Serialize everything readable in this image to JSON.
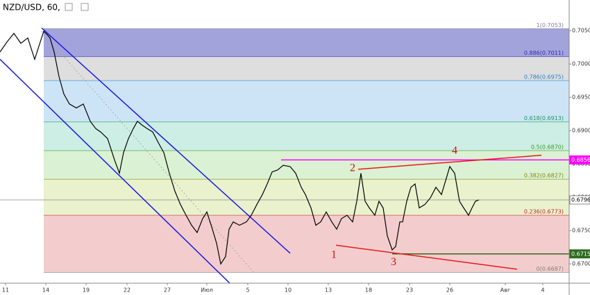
{
  "chart_data": {
    "type": "line",
    "title": "NZD/USD, 60,",
    "xlim": [
      0,
      820
    ],
    "ylim": [
      0.6671,
      0.7096
    ],
    "xticks": [
      {
        "value": 8,
        "label": "11"
      },
      {
        "value": 66,
        "label": "14"
      },
      {
        "value": 124,
        "label": "19"
      },
      {
        "value": 183,
        "label": "22"
      },
      {
        "value": 241,
        "label": "27"
      },
      {
        "value": 298,
        "label": "Июл"
      },
      {
        "value": 357,
        "label": "5"
      },
      {
        "value": 415,
        "label": "10"
      },
      {
        "value": 473,
        "label": "13"
      },
      {
        "value": 531,
        "label": "18"
      },
      {
        "value": 590,
        "label": "23"
      },
      {
        "value": 648,
        "label": "26"
      },
      {
        "value": 728,
        "label": "Авг"
      },
      {
        "value": 782,
        "label": "4"
      }
    ],
    "yticks": [
      {
        "value": 0.67,
        "label": "0.6700"
      },
      {
        "value": 0.675,
        "label": "0.6750"
      },
      {
        "value": 0.68,
        "label": "0.6800"
      },
      {
        "value": 0.685,
        "label": "0.6850"
      },
      {
        "value": 0.69,
        "label": "0.6900"
      },
      {
        "value": 0.695,
        "label": "0.6950"
      },
      {
        "value": 0.7,
        "label": "0.7000"
      },
      {
        "value": 0.705,
        "label": "0.7050"
      }
    ],
    "series": [
      {
        "color": "#000000",
        "x": [
          0,
          10,
          20,
          30,
          40,
          50,
          58,
          63,
          68,
          72,
          78,
          85,
          92,
          100,
          110,
          120,
          130,
          138,
          145,
          155,
          165,
          172,
          178,
          185,
          192,
          198,
          205,
          212,
          220,
          228,
          236,
          244,
          252,
          260,
          268,
          276,
          284,
          292,
          298,
          306,
          312,
          318,
          325,
          330,
          336,
          345,
          355,
          362,
          370,
          378,
          385,
          392,
          400,
          408,
          418,
          426,
          434,
          440,
          448,
          455,
          462,
          470,
          478,
          485,
          492,
          500,
          508,
          514,
          520,
          526,
          532,
          540,
          546,
          552,
          558,
          565,
          570,
          576,
          580,
          586,
          592,
          598,
          604,
          612,
          620,
          628,
          636,
          642,
          648,
          655,
          662,
          668,
          675,
          680,
          685,
          690
        ],
        "values": [
          0.7018,
          0.7033,
          0.7046,
          0.7031,
          0.7039,
          0.7007,
          0.7033,
          0.7049,
          0.7044,
          0.7039,
          0.7018,
          0.6981,
          0.6955,
          0.694,
          0.6934,
          0.694,
          0.6914,
          0.6903,
          0.6898,
          0.6888,
          0.6856,
          0.6836,
          0.6867,
          0.6888,
          0.6903,
          0.6914,
          0.6908,
          0.6903,
          0.6898,
          0.6882,
          0.6867,
          0.6836,
          0.6809,
          0.6789,
          0.6773,
          0.6758,
          0.6747,
          0.6768,
          0.6778,
          0.6752,
          0.6731,
          0.67,
          0.6711,
          0.6752,
          0.6763,
          0.6758,
          0.6763,
          0.6773,
          0.6789,
          0.6804,
          0.682,
          0.6838,
          0.6841,
          0.6848,
          0.6846,
          0.6836,
          0.6815,
          0.6804,
          0.6784,
          0.6758,
          0.6763,
          0.6778,
          0.6763,
          0.6752,
          0.6768,
          0.6773,
          0.6763,
          0.6794,
          0.6836,
          0.6794,
          0.6784,
          0.6773,
          0.6794,
          0.6784,
          0.6742,
          0.6721,
          0.6726,
          0.6763,
          0.6763,
          0.6794,
          0.6815,
          0.682,
          0.6784,
          0.6789,
          0.6799,
          0.6815,
          0.6804,
          0.6825,
          0.6846,
          0.6836,
          0.6794,
          0.6784,
          0.6773,
          0.6784,
          0.6794,
          0.6796
        ]
      }
    ],
    "fib": {
      "x_start": 63,
      "levels": [
        {
          "label": "1(0.7053)",
          "value": 0.7053,
          "color": "#8080a0"
        },
        {
          "label": "0.886(0.7011)",
          "value": 0.7011,
          "color": "#3030b0"
        },
        {
          "label": "0.786(0.6975)",
          "value": 0.6975,
          "color": "#2a80c8"
        },
        {
          "label": "0.618(0.6913)",
          "value": 0.6913,
          "color": "#1a9a5a"
        },
        {
          "label": "0.5(0.6870)",
          "value": 0.687,
          "color": "#3a9a2a"
        },
        {
          "label": "0.382(0.6827)",
          "value": 0.6827,
          "color": "#7a8a10"
        },
        {
          "label": "0.236(0.6773)",
          "value": 0.6773,
          "color": "#c02828"
        },
        {
          "label": "0(0.6687)",
          "value": 0.6687,
          "color": "#808080"
        }
      ],
      "zone_colors": [
        "#a3a3db",
        "#dedede",
        "#cde4f6",
        "#cdeee4",
        "#dbf1d3",
        "#e9f2cd",
        "#f3cdcd"
      ]
    },
    "price_markers": [
      {
        "label": "0.6856",
        "value": 0.6856,
        "color": "#ff00ff",
        "text_color": "#ffffff",
        "x_start": 405
      },
      {
        "label": "0.6796",
        "value": 0.6796,
        "color": "#888888",
        "text_color": "#000000",
        "x_start": 0
      },
      {
        "label": "0.6715",
        "value": 0.6715,
        "color": "#2e6b1e",
        "text_color": "#ffffff",
        "x_start": 565
      }
    ],
    "trend_lines": [
      {
        "color": "#1a1ae6",
        "style": "solid",
        "x": [
          60,
          418
        ],
        "y": [
          0.7054,
          0.6716
        ]
      },
      {
        "color": "#1a1ae6",
        "style": "solid",
        "x": [
          0,
          333
        ],
        "y": [
          0.7007,
          0.6669
        ]
      },
      {
        "color": "#aaaaaa",
        "style": "dotted",
        "x": [
          60,
          365
        ],
        "y": [
          0.7049,
          0.6688
        ]
      },
      {
        "color": "#e61a1a",
        "style": "solid",
        "x": [
          516,
          780
        ],
        "y": [
          0.6842,
          0.6863
        ]
      },
      {
        "color": "#e61a1a",
        "style": "solid",
        "x": [
          484,
          745
        ],
        "y": [
          0.6728,
          0.6692
        ]
      }
    ],
    "annotations": [
      {
        "text": "1",
        "x": 481,
        "y": 0.6713,
        "color": "#d01010"
      },
      {
        "text": "2",
        "x": 508,
        "y": 0.6843,
        "color": "#d01010"
      },
      {
        "text": "3",
        "x": 567,
        "y": 0.6702,
        "color": "#d01010"
      },
      {
        "text": "4",
        "x": 655,
        "y": 0.6869,
        "color": "#d01010"
      }
    ]
  }
}
